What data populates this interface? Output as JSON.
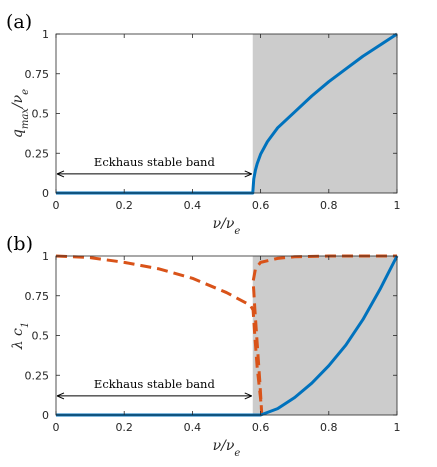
{
  "chart_data": [
    {
      "panel_label": "(a)",
      "type": "line",
      "xlabel": "ν/ν_e",
      "ylabel": "q_max/ν_e",
      "xlim": [
        0,
        1
      ],
      "ylim": [
        0,
        1
      ],
      "xticks": [
        "0",
        "0.2",
        "0.4",
        "0.6",
        "0.8",
        "1"
      ],
      "yticks": [
        "0",
        "0.25",
        "0.5",
        "0.75",
        "1"
      ],
      "grid": false,
      "shaded_region": {
        "x0": 0.577,
        "x1": 1.0,
        "color": "#cccccc"
      },
      "annotation": {
        "text": "Eckhaus stable band",
        "x_start": 0.0,
        "x_end": 0.577,
        "y": 0.12
      },
      "series": [
        {
          "style": "solid",
          "color": "#0072bd",
          "x": [
            0,
            0.577,
            0.58,
            0.585,
            0.59,
            0.6,
            0.62,
            0.65,
            0.7,
            0.75,
            0.8,
            0.85,
            0.9,
            0.95,
            1.0
          ],
          "y": [
            0,
            0,
            0.089,
            0.145,
            0.185,
            0.244,
            0.323,
            0.41,
            0.51,
            0.61,
            0.7,
            0.78,
            0.86,
            0.93,
            1.0
          ]
        }
      ]
    },
    {
      "panel_label": "(b)",
      "type": "line",
      "xlabel": "ν/ν_e",
      "ylabel": "λ c_1",
      "xlim": [
        0,
        1
      ],
      "ylim": [
        0,
        1
      ],
      "xticks": [
        "0",
        "0.2",
        "0.4",
        "0.6",
        "0.8",
        "1"
      ],
      "yticks": [
        "0",
        "0.25",
        "0.5",
        "0.75",
        "1"
      ],
      "grid": false,
      "shaded_region": {
        "x0": 0.577,
        "x1": 1.0,
        "color": "#cccccc"
      },
      "annotation": {
        "text": "Eckhaus stable band",
        "x_start": 0.0,
        "x_end": 0.577,
        "y": 0.12
      },
      "series": [
        {
          "style": "dashed",
          "color": "#d95319",
          "x": [
            0,
            0.1,
            0.2,
            0.3,
            0.4,
            0.5,
            0.57,
            0.578,
            0.583,
            0.59,
            0.6,
            0.603,
            0.598,
            0.59,
            0.583,
            0.58,
            0.578,
            0.585,
            0.6,
            0.65,
            0.7,
            0.8,
            0.9,
            1.0
          ],
          "y": [
            1.0,
            0.99,
            0.96,
            0.92,
            0.86,
            0.77,
            0.69,
            0.66,
            0.5,
            0.3,
            0.1,
            0.02,
            0.2,
            0.45,
            0.67,
            0.78,
            0.84,
            0.92,
            0.96,
            0.985,
            0.995,
            1.0,
            1.0,
            1.0
          ]
        },
        {
          "style": "solid",
          "color": "#0072bd",
          "x": [
            0,
            0.6,
            0.65,
            0.7,
            0.75,
            0.8,
            0.85,
            0.9,
            0.95,
            1.0
          ],
          "y": [
            0,
            0,
            0.04,
            0.11,
            0.2,
            0.31,
            0.44,
            0.6,
            0.79,
            1.0
          ]
        }
      ]
    }
  ]
}
